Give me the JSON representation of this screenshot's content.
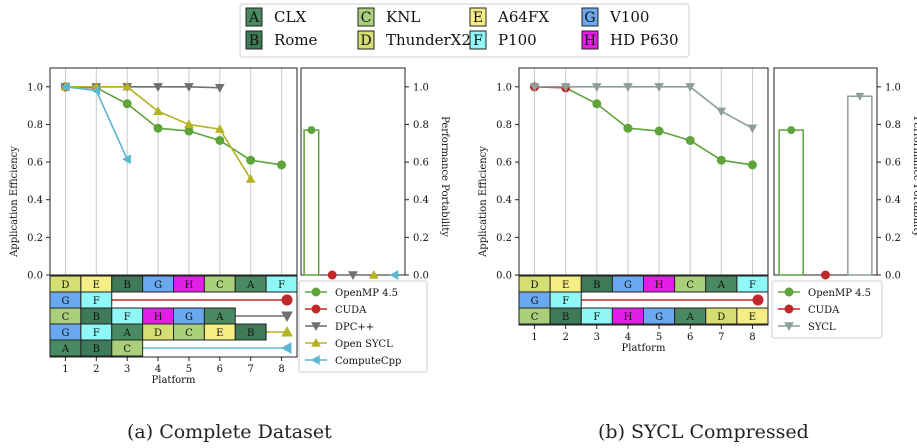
{
  "platform_legend": [
    {
      "code": "A",
      "name": "CLX",
      "color": "#4a8a62"
    },
    {
      "code": "B",
      "name": "Rome",
      "color": "#3f7a58"
    },
    {
      "code": "C",
      "name": "KNL",
      "color": "#a9cf7a"
    },
    {
      "code": "D",
      "name": "ThunderX2",
      "color": "#d4de72"
    },
    {
      "code": "E",
      "name": "A64FX",
      "color": "#f6ee84"
    },
    {
      "code": "F",
      "name": "P100",
      "color": "#8ff7f5"
    },
    {
      "code": "G",
      "name": "V100",
      "color": "#6aa8ef"
    },
    {
      "code": "H",
      "name": "HD P630",
      "color": "#e21ee6"
    }
  ],
  "chart_data": [
    {
      "type": "line",
      "caption": "(a) Complete Dataset",
      "xlabel": "Platform",
      "ylabel": "Application Efficiency",
      "ylabel_right": "Performance Portability",
      "x_ticks": [
        "1",
        "2",
        "3",
        "4",
        "5",
        "6",
        "7",
        "8"
      ],
      "y_ticks": [
        "0.0",
        "0.2",
        "0.4",
        "0.6",
        "0.8",
        "1.0"
      ],
      "ylim": [
        0,
        1.1
      ],
      "xlim": [
        0.5,
        8.5
      ],
      "series": [
        {
          "name": "OpenMP 4.5",
          "color": "#5fa33a",
          "marker": "o",
          "x": [
            1,
            2,
            3,
            4,
            5,
            6,
            7,
            8
          ],
          "y": [
            1.0,
            0.995,
            0.91,
            0.78,
            0.765,
            0.715,
            0.61,
            0.585
          ],
          "platforms": [
            "D",
            "E",
            "B",
            "G",
            "H",
            "C",
            "A",
            "F"
          ],
          "pp": 0.77
        },
        {
          "name": "CUDA",
          "color": "#c0282b",
          "marker": "o",
          "x": [
            1,
            2
          ],
          "y": [
            1.0,
            0.995
          ],
          "platforms": [
            "G",
            "F"
          ],
          "pp": 0.0
        },
        {
          "name": "DPC++",
          "color": "#6f6f6f",
          "marker": "v",
          "x": [
            1,
            2,
            3,
            4,
            5,
            6
          ],
          "y": [
            1.0,
            1.0,
            1.0,
            1.0,
            1.0,
            0.995
          ],
          "platforms": [
            "C",
            "B",
            "F",
            "H",
            "G",
            "A"
          ],
          "pp": 0.0
        },
        {
          "name": "Open SYCL",
          "color": "#b5b223",
          "marker": "^",
          "x": [
            1,
            2,
            3,
            4,
            5,
            6,
            7
          ],
          "y": [
            1.0,
            1.0,
            1.0,
            0.87,
            0.8,
            0.775,
            0.51
          ],
          "platforms": [
            "G",
            "F",
            "A",
            "D",
            "C",
            "E",
            "B"
          ],
          "pp": 0.0
        },
        {
          "name": "ComputeCpp",
          "color": "#5bb7d0",
          "marker": "<",
          "x": [
            1,
            2,
            3
          ],
          "y": [
            1.0,
            0.98,
            0.615
          ],
          "platforms": [
            "A",
            "B",
            "C"
          ],
          "pp": 0.0
        }
      ]
    },
    {
      "type": "line",
      "caption": "(b) SYCL Compressed",
      "xlabel": "Platform",
      "ylabel": "Application Efficiency",
      "ylabel_right": "Performance Portability",
      "x_ticks": [
        "1",
        "2",
        "3",
        "4",
        "5",
        "6",
        "7",
        "8"
      ],
      "y_ticks": [
        "0.0",
        "0.2",
        "0.4",
        "0.6",
        "0.8",
        "1.0"
      ],
      "ylim": [
        0,
        1.1
      ],
      "xlim": [
        0.5,
        8.5
      ],
      "series": [
        {
          "name": "OpenMP 4.5",
          "color": "#5fa33a",
          "marker": "o",
          "x": [
            1,
            2,
            3,
            4,
            5,
            6,
            7,
            8
          ],
          "y": [
            1.0,
            0.995,
            0.91,
            0.78,
            0.765,
            0.715,
            0.61,
            0.585
          ],
          "platforms": [
            "D",
            "E",
            "B",
            "G",
            "H",
            "C",
            "A",
            "F"
          ],
          "pp": 0.77
        },
        {
          "name": "CUDA",
          "color": "#c0282b",
          "marker": "o",
          "x": [
            1,
            2
          ],
          "y": [
            1.0,
            0.995
          ],
          "platforms": [
            "G",
            "F"
          ],
          "pp": 0.0
        },
        {
          "name": "SYCL",
          "color": "#8f9e9c",
          "marker": "v",
          "x": [
            1,
            2,
            3,
            4,
            5,
            6,
            7,
            8
          ],
          "y": [
            1.0,
            1.0,
            1.0,
            1.0,
            1.0,
            1.0,
            0.87,
            0.78
          ],
          "platforms": [
            "C",
            "B",
            "F",
            "H",
            "G",
            "A",
            "D",
            "E"
          ],
          "pp": 0.95
        }
      ]
    }
  ]
}
